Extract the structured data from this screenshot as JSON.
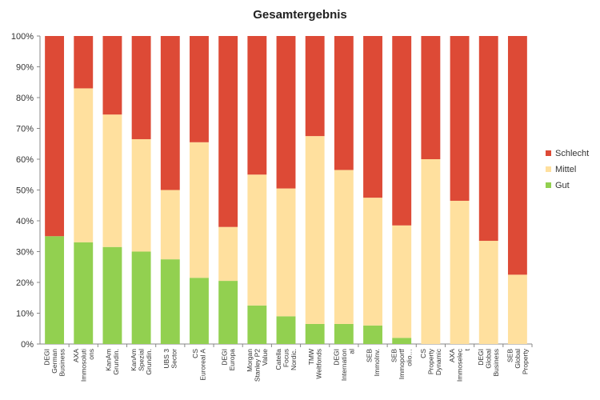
{
  "chart_data": {
    "type": "bar",
    "stacked": "percent",
    "title": "Gesamtergebnis",
    "xlabel": "",
    "ylabel": "",
    "ylim": [
      0,
      100
    ],
    "yticks": [
      "0%",
      "10%",
      "20%",
      "30%",
      "40%",
      "50%",
      "60%",
      "70%",
      "80%",
      "90%",
      "100%"
    ],
    "grid": false,
    "legend_position": "right",
    "categories": [
      [
        "DEGI",
        "German",
        "Business"
      ],
      [
        "AXA",
        "Immosoluti",
        "ons"
      ],
      [
        "KanAm",
        "Grundin."
      ],
      [
        "KanAm",
        "Spezial",
        "Grundin."
      ],
      [
        "UBS 3",
        "Sector"
      ],
      [
        "CS",
        "Euroreal A"
      ],
      [
        "DEGI",
        "Europa"
      ],
      [
        "Morgan",
        "Stanley P2",
        "Value"
      ],
      [
        "Catella",
        "Focus",
        "Nordic."
      ],
      [
        "TMW",
        "Weltfonds"
      ],
      [
        "DEGI",
        "Internation",
        "al"
      ],
      [
        "SEB",
        "ImmoInv."
      ],
      [
        "SEB",
        "Immoportf",
        "olio…"
      ],
      [
        "CS",
        "Property",
        "Dynamic"
      ],
      [
        "AXA",
        "Immoselec",
        "t"
      ],
      [
        "DEGI",
        "Global",
        "Business"
      ],
      [
        "SEB",
        "Global",
        "Property"
      ]
    ],
    "series": [
      {
        "name": "Gut",
        "color": "#92d050",
        "values": [
          35,
          33,
          31.5,
          30,
          27.5,
          21.5,
          20.5,
          12.5,
          9,
          6.5,
          6.5,
          6,
          2,
          0,
          0,
          0,
          0
        ]
      },
      {
        "name": "Mittel",
        "color": "#ffe09e",
        "values": [
          0,
          50,
          43,
          36.5,
          22.5,
          44,
          17.5,
          42.5,
          41.5,
          61,
          50,
          41.5,
          36.5,
          60,
          46.5,
          33.5,
          22.5
        ]
      },
      {
        "name": "Schlecht",
        "color": "#dd4a36",
        "values": [
          65,
          17,
          25.5,
          33.5,
          50,
          34.5,
          62,
          45,
          49.5,
          32.5,
          43.5,
          52.5,
          61.5,
          40,
          53.5,
          66.5,
          77.5
        ]
      }
    ],
    "legend_order": [
      "Schlecht",
      "Mittel",
      "Gut"
    ]
  }
}
